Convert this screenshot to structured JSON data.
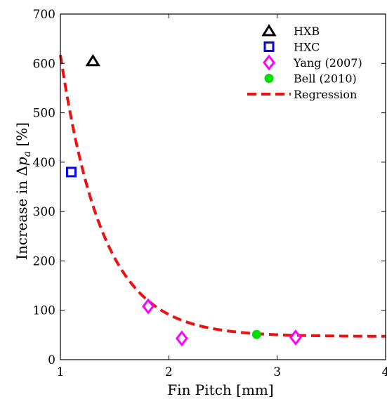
{
  "chart_data": {
    "type": "scatter",
    "xlabel": "Fin Pitch [mm]",
    "ylabel_prefix": "Increase in Δ",
    "ylabel_var": "p",
    "ylabel_sub": "a",
    "ylabel_suffix": " [%]",
    "xlim": [
      1,
      4
    ],
    "ylim": [
      0,
      700
    ],
    "xticks": [
      1,
      2,
      3,
      4
    ],
    "yticks": [
      0,
      100,
      200,
      300,
      400,
      500,
      600,
      700
    ],
    "grid": false,
    "legend_position": "top-right",
    "series": [
      {
        "name": "HXB",
        "marker": "triangle",
        "color": "#000000",
        "points": [
          [
            1.3,
            605
          ]
        ]
      },
      {
        "name": "HXC",
        "marker": "square",
        "color": "#0000ff",
        "points": [
          [
            1.1,
            380
          ]
        ]
      },
      {
        "name": "Yang (2007)",
        "marker": "diamond",
        "color": "#ff00ff",
        "points": [
          [
            1.81,
            108
          ],
          [
            2.12,
            43
          ],
          [
            3.17,
            45
          ]
        ]
      },
      {
        "name": "Bell (2010)",
        "marker": "circle",
        "color": "#00dd00",
        "points": [
          [
            2.81,
            51
          ]
        ]
      },
      {
        "name": "Regression",
        "marker": "dashed-line",
        "color": "#ee1111",
        "model": {
          "a": 570,
          "k": 2.55,
          "c": 47,
          "x0": 1
        }
      }
    ]
  }
}
